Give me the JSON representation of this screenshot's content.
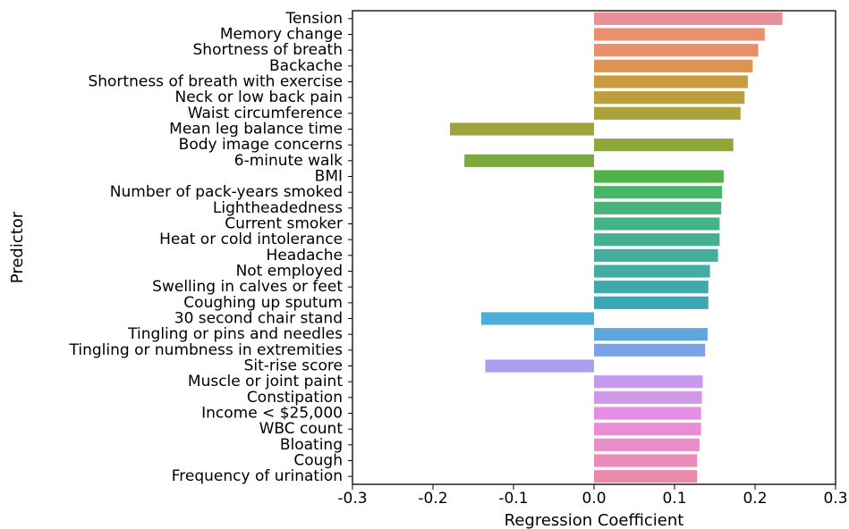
{
  "chart_data": {
    "type": "bar",
    "orientation": "horizontal",
    "xlabel": "Regression Coefficient",
    "ylabel": "Predictor",
    "xlim": [
      -0.3,
      0.3
    ],
    "xticks": [
      "-0.3",
      "-0.2",
      "-0.1",
      "0.0",
      "0.1",
      "0.2",
      "0.3"
    ],
    "grid": false,
    "categories": [
      "Tension",
      "Memory change",
      "Shortness of breath",
      "Backache",
      "Shortness of breath with exercise",
      "Neck or low back pain",
      "Waist circumference",
      "Mean leg balance time",
      "Body image concerns",
      "6-minute walk",
      "BMI",
      "Number of pack-years smoked",
      "Lightheadedness",
      "Current smoker",
      "Heat or cold intolerance",
      "Headache",
      "Not employed",
      "Swelling in calves or feet",
      "Coughing up sputum",
      "30 second chair stand",
      "Tingling or pins and needles",
      "Tingling or numbness in extremities",
      "Sit-rise score",
      "Muscle or joint paint",
      "Constipation",
      "Income < $25,000",
      "WBC count",
      "Bloating",
      "Cough",
      "Frequency of urination"
    ],
    "values": [
      0.234,
      0.212,
      0.204,
      0.197,
      0.191,
      0.187,
      0.182,
      -0.179,
      0.173,
      -0.161,
      0.161,
      0.159,
      0.158,
      0.156,
      0.156,
      0.154,
      0.144,
      0.142,
      0.142,
      -0.14,
      0.141,
      0.138,
      -0.135,
      0.135,
      0.134,
      0.133,
      0.133,
      0.131,
      0.128,
      0.128
    ],
    "colors": [
      "#e8909a",
      "#e8916f",
      "#e8906a",
      "#dd9450",
      "#cb9a3f",
      "#bb9f3a",
      "#aba33a",
      "#9ea43b",
      "#8fa63a",
      "#7aaa3a",
      "#52b24a",
      "#47b666",
      "#48b47a",
      "#46b288",
      "#46b092",
      "#44ad9c",
      "#44aca3",
      "#3fa9ac",
      "#3ea7b6",
      "#4aaed6",
      "#5ea6e0",
      "#7aa2e6",
      "#a99ef0",
      "#c599ec",
      "#d098e6",
      "#e48ee6",
      "#ea8cd8",
      "#ea8dcb",
      "#ea8cb9",
      "#e98aaa"
    ]
  }
}
